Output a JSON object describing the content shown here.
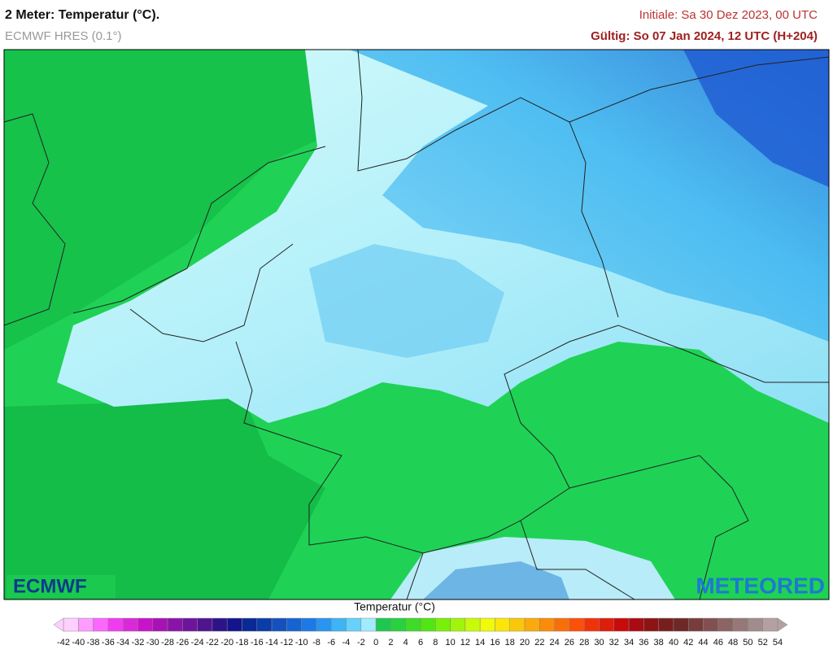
{
  "header": {
    "title": "2 Meter: Temperatur (°C).",
    "model": "ECMWF HRES (0.1°)",
    "init": "Initiale: Sa 30 Dez 2023, 00 UTC",
    "valid": "Gültig: So 07 Jan 2024, 12 UTC (H+204)"
  },
  "logos": {
    "left": "ECMWF",
    "right": "METEORED"
  },
  "legend": {
    "title": "Temperatur (°C)",
    "ticks": [
      -42,
      -40,
      -38,
      -36,
      -34,
      -32,
      -30,
      -28,
      -26,
      -24,
      -22,
      -20,
      -18,
      -16,
      -14,
      -12,
      -10,
      -8,
      -6,
      -4,
      -2,
      0,
      2,
      4,
      6,
      8,
      10,
      12,
      14,
      16,
      18,
      20,
      22,
      24,
      26,
      28,
      30,
      32,
      34,
      36,
      38,
      40,
      42,
      44,
      46,
      48,
      50,
      52,
      54
    ],
    "colors": [
      "#ffd0ff",
      "#ff9cff",
      "#ff66ff",
      "#f03cf0",
      "#dc28dc",
      "#c814c8",
      "#a812b4",
      "#8a14a8",
      "#6e149c",
      "#501490",
      "#2c1488",
      "#14148c",
      "#0a2896",
      "#0a3caa",
      "#1450be",
      "#1464d2",
      "#1e78e6",
      "#2896f0",
      "#3cb4f5",
      "#64d2fa",
      "#a0ebff",
      "#1ec850",
      "#28d23c",
      "#3cdc28",
      "#50e614",
      "#78f00a",
      "#a0f50a",
      "#c8fa0a",
      "#f0fa0a",
      "#fae60a",
      "#fac80a",
      "#faaa0a",
      "#fa8c0a",
      "#fa6e0a",
      "#fa500a",
      "#f0320a",
      "#dc1e0a",
      "#c80a0a",
      "#aa0a14",
      "#8c1414",
      "#781e1e",
      "#6e2828",
      "#783c3c",
      "#825050",
      "#8c6464",
      "#967878",
      "#a08c8c",
      "#b4a0a0"
    ]
  }
}
